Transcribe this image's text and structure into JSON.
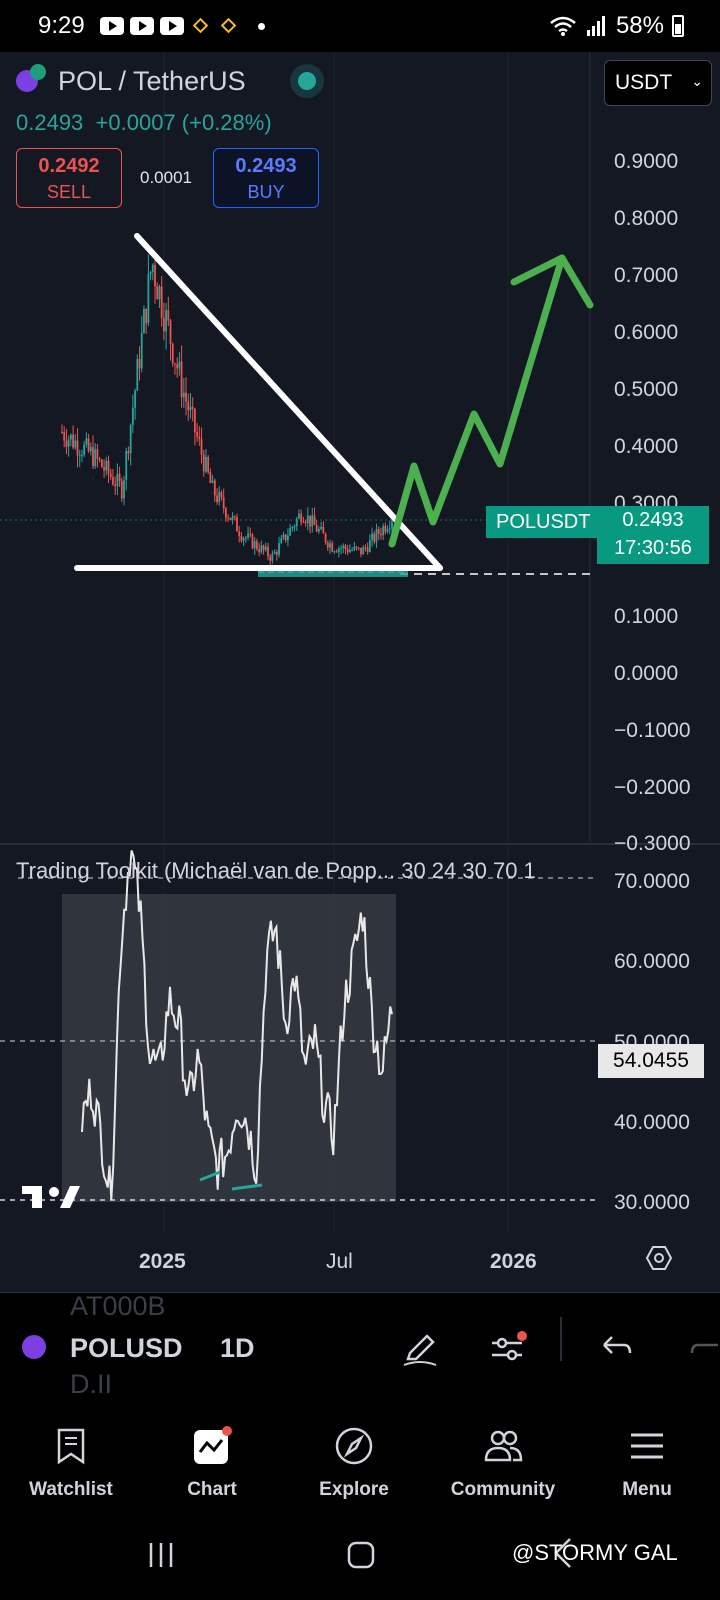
{
  "status_bar": {
    "time": "9:29",
    "battery": "58%"
  },
  "header": {
    "title": "POL / TetherUS",
    "last_price": "0.2493",
    "change": "+0.0007 (+0.28%)",
    "sell_price": "0.2492",
    "sell_label": "SELL",
    "spread": "0.0001",
    "buy_price": "0.2493",
    "buy_label": "BUY",
    "currency": "USDT"
  },
  "price_axis": [
    "0.9000",
    "0.8000",
    "0.7000",
    "0.6000",
    "0.5000",
    "0.4000",
    "0.3000",
    "0.1000",
    "0.0000",
    "−0.1000",
    "−0.2000",
    "−0.3000"
  ],
  "price_tag": {
    "symbol": "POLUSDT",
    "price": "0.2493",
    "countdown": "17:30:56"
  },
  "indicator": {
    "title": "Trading Toolkit (Michaël van de Popp... 30 24 30 70 1",
    "axis": [
      "70.0000",
      "60.0000",
      "50.0000",
      "40.0000",
      "30.0000"
    ],
    "current": "54.0455"
  },
  "time_axis": [
    "2025",
    "Jul",
    "2026"
  ],
  "toolbar": {
    "symbol": "POLUSD",
    "interval": "1D",
    "ghost_top": "AT000B",
    "ghost_bottom": "D.II"
  },
  "nav": {
    "watchlist": "Watchlist",
    "chart": "Chart",
    "explore": "Explore",
    "community": "Community",
    "menu": "Menu"
  },
  "watermark": "@STORMY GAL",
  "colors": {
    "up": "#26a69a",
    "down": "#ef5350",
    "projection": "#4caf50",
    "background": "#141823"
  },
  "chart_data": {
    "type": "candlestick",
    "symbol": "POLUSDT",
    "interval": "1D",
    "ylim": [
      -0.3,
      0.9
    ],
    "last": 0.2493,
    "approx_path": [
      {
        "t": "2024-09",
        "v": 0.4
      },
      {
        "t": "2024-10",
        "v": 0.36
      },
      {
        "t": "2024-11",
        "v": 0.3
      },
      {
        "t": "2024-12",
        "v": 0.7
      },
      {
        "t": "2025-01",
        "v": 0.48
      },
      {
        "t": "2025-02",
        "v": 0.3
      },
      {
        "t": "2025-03",
        "v": 0.22
      },
      {
        "t": "2025-04",
        "v": 0.18
      },
      {
        "t": "2025-05",
        "v": 0.26
      },
      {
        "t": "2025-06",
        "v": 0.2
      },
      {
        "t": "2025-07",
        "v": 0.19
      },
      {
        "t": "2025-08",
        "v": 0.25
      }
    ],
    "indicator_ylim": [
      30,
      70
    ],
    "indicator_value": 54.0455
  }
}
